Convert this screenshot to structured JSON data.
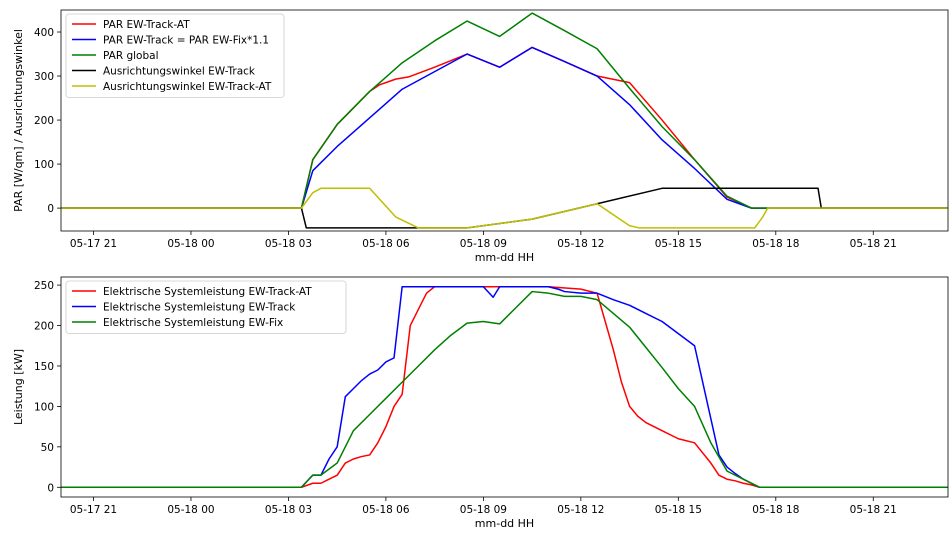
{
  "chart_data": [
    {
      "type": "line",
      "xlabel": "mm-dd HH",
      "ylabel": "PAR [W/qm] / Ausrichtungswinkel",
      "x_tick_labels": [
        "05-17 21",
        "05-18 00",
        "05-18 03",
        "05-18 06",
        "05-18 09",
        "05-18 12",
        "05-18 15",
        "05-18 18",
        "05-18 21"
      ],
      "x_tick_hours": [
        -3,
        0,
        3,
        6,
        9,
        12,
        15,
        18,
        21
      ],
      "xlim_hours": [
        -4,
        23.3
      ],
      "x_unit_note": "hours relative to 05-18 00:00",
      "yticks": [
        0,
        100,
        200,
        300,
        400
      ],
      "ylim": [
        -52,
        450
      ],
      "grid": false,
      "legend_position": "top-left",
      "series": [
        {
          "name": "PAR EW-Track-AT",
          "color": "#ff0000",
          "x": [
            -4,
            3.4,
            3.75,
            4.5,
            5.5,
            5.8,
            6.3,
            6.7,
            7.5,
            8.5,
            9.5,
            10.5,
            11.5,
            12.5,
            13.5,
            14.5,
            15.5,
            16.5,
            17.25,
            17.5,
            23.3
          ],
          "y": [
            0,
            0,
            110,
            190,
            265,
            280,
            293,
            298,
            320,
            350,
            320,
            365,
            333,
            300,
            285,
            200,
            110,
            25,
            0,
            0,
            0
          ]
        },
        {
          "name": "PAR EW-Track = PAR EW-Fix*1.1",
          "color": "#0000ff",
          "x": [
            -4,
            3.4,
            3.75,
            4.5,
            5.5,
            6.5,
            7.5,
            8.5,
            9.5,
            10.5,
            11.5,
            12.5,
            13.5,
            14.5,
            15.5,
            16.5,
            17.25,
            17.5,
            23.3
          ],
          "y": [
            0,
            0,
            85,
            140,
            205,
            270,
            310,
            350,
            320,
            365,
            333,
            300,
            235,
            155,
            90,
            20,
            0,
            0,
            0
          ]
        },
        {
          "name": "PAR global",
          "color": "#008000",
          "x": [
            -4,
            3.4,
            3.75,
            4.5,
            5.5,
            6.5,
            7.5,
            8.5,
            9.5,
            10.5,
            11.5,
            12.5,
            13.5,
            14.5,
            15.5,
            16.5,
            17.25,
            17.5,
            23.3
          ],
          "y": [
            0,
            0,
            110,
            190,
            265,
            330,
            380,
            425,
            390,
            443,
            403,
            362,
            272,
            185,
            110,
            27,
            0,
            0,
            0
          ]
        },
        {
          "name": "Ausrichtungswinkel EW-Track",
          "color": "#000000",
          "x": [
            -4,
            3.4,
            3.55,
            7,
            8.5,
            10.5,
            12.5,
            14.5,
            16,
            17,
            18,
            19.3,
            19.4,
            23.3
          ],
          "y": [
            0,
            0,
            -45,
            -45,
            -45,
            -25,
            10,
            45,
            45,
            45,
            45,
            45,
            0,
            0
          ]
        },
        {
          "name": "Ausrichtungswinkel EW-Track-AT",
          "color": "#bfbf00",
          "x": [
            -4,
            3.4,
            3.75,
            4,
            5.3,
            5.5,
            6.3,
            7,
            8.5,
            10.5,
            12.5,
            13.5,
            13.8,
            16,
            16.5,
            17.35,
            17.6,
            17.75,
            23.3
          ],
          "y": [
            0,
            0,
            35,
            45,
            45,
            45,
            -20,
            -45,
            -45,
            -25,
            10,
            -40,
            -45,
            -45,
            -45,
            -45,
            -20,
            0,
            0
          ]
        }
      ]
    },
    {
      "type": "line",
      "xlabel": "mm-dd HH",
      "ylabel": "Leistung [kW]",
      "x_tick_labels": [
        "05-17 21",
        "05-18 00",
        "05-18 03",
        "05-18 06",
        "05-18 09",
        "05-18 12",
        "05-18 15",
        "05-18 18",
        "05-18 21"
      ],
      "x_tick_hours": [
        -3,
        0,
        3,
        6,
        9,
        12,
        15,
        18,
        21
      ],
      "xlim_hours": [
        -4,
        23.3
      ],
      "x_unit_note": "hours relative to 05-18 00:00",
      "yticks": [
        0,
        50,
        100,
        150,
        200,
        250
      ],
      "ylim": [
        -12,
        260
      ],
      "grid": false,
      "legend_position": "top-left",
      "series": [
        {
          "name": "Elektrische Systemleistung EW-Track-AT",
          "color": "#ff0000",
          "x": [
            -4,
            3.4,
            3.75,
            4,
            4.25,
            4.5,
            4.75,
            5,
            5.25,
            5.5,
            5.75,
            6,
            6.25,
            6.5,
            6.75,
            7,
            7.25,
            7.5,
            8,
            9,
            10,
            11,
            12,
            12.5,
            12.75,
            13,
            13.25,
            13.5,
            13.75,
            14,
            14.5,
            15,
            15.5,
            16,
            16.25,
            16.5,
            16.75,
            17,
            17.25,
            17.5,
            23.3
          ],
          "y": [
            0,
            0,
            5,
            5,
            10,
            15,
            30,
            35,
            38,
            40,
            55,
            75,
            100,
            115,
            200,
            220,
            240,
            248,
            248,
            248,
            248,
            248,
            245,
            240,
            205,
            170,
            130,
            100,
            88,
            80,
            70,
            60,
            55,
            30,
            15,
            10,
            8,
            5,
            3,
            0,
            0
          ]
        },
        {
          "name": "Elektrische Systemleistung EW-Track",
          "color": "#0000ff",
          "x": [
            -4,
            3.4,
            3.75,
            4,
            4.25,
            4.5,
            4.75,
            5,
            5.25,
            5.5,
            5.75,
            6,
            6.25,
            6.5,
            6.75,
            7,
            8,
            9,
            9.3,
            9.5,
            10,
            11,
            11.3,
            11.5,
            12,
            12.5,
            13,
            13.5,
            14,
            14.5,
            15,
            15.5,
            15.75,
            16,
            16.25,
            16.5,
            16.75,
            17,
            17.25,
            17.5,
            23.3
          ],
          "y": [
            0,
            0,
            15,
            15,
            35,
            50,
            112,
            122,
            132,
            140,
            145,
            155,
            160,
            248,
            248,
            248,
            248,
            248,
            235,
            248,
            248,
            248,
            245,
            242,
            240,
            240,
            232,
            225,
            215,
            205,
            190,
            175,
            130,
            85,
            40,
            25,
            17,
            10,
            5,
            0,
            0
          ]
        },
        {
          "name": "Elektrische Systemleistung EW-Fix",
          "color": "#008000",
          "x": [
            -4,
            3.4,
            3.75,
            4,
            4.5,
            5,
            5.5,
            6,
            6.5,
            7,
            7.5,
            8,
            8.5,
            9,
            9.5,
            10,
            10.5,
            11,
            11.5,
            12,
            12.5,
            13,
            13.5,
            14,
            14.5,
            15,
            15.5,
            16,
            16.5,
            17,
            17.5,
            23.3
          ],
          "y": [
            0,
            0,
            15,
            15,
            30,
            70,
            90,
            110,
            130,
            150,
            170,
            188,
            203,
            205,
            202,
            222,
            242,
            240,
            236,
            236,
            232,
            215,
            198,
            173,
            148,
            122,
            100,
            55,
            20,
            10,
            0,
            0
          ]
        }
      ]
    }
  ]
}
